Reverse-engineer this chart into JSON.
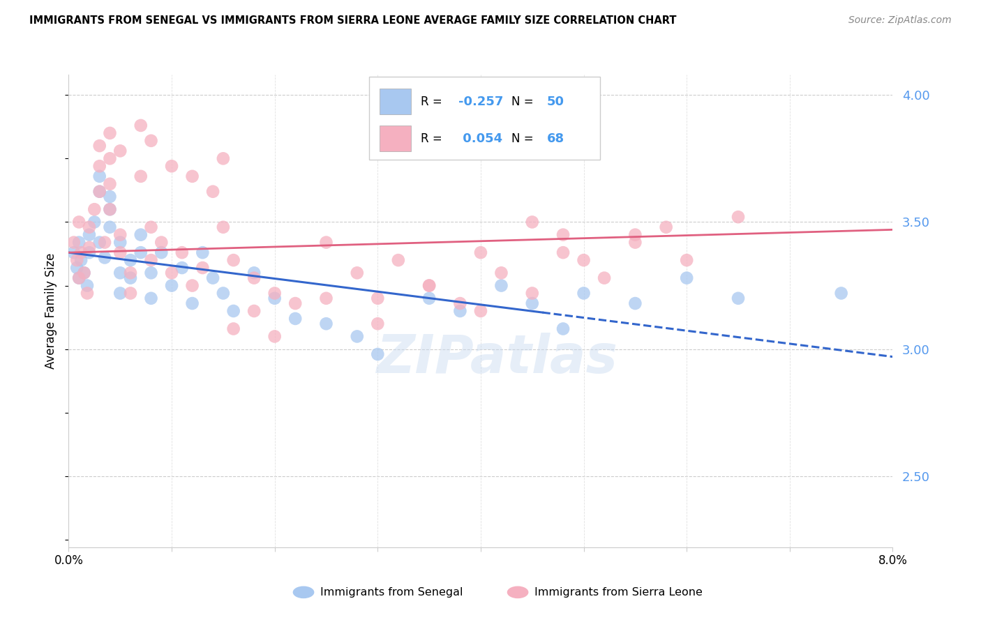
{
  "title": "IMMIGRANTS FROM SENEGAL VS IMMIGRANTS FROM SIERRA LEONE AVERAGE FAMILY SIZE CORRELATION CHART",
  "source": "Source: ZipAtlas.com",
  "ylabel": "Average Family Size",
  "right_yticks": [
    2.5,
    3.0,
    3.5,
    4.0
  ],
  "legend_blue_R": "-0.257",
  "legend_blue_N": "50",
  "legend_pink_R": "0.054",
  "legend_pink_N": "68",
  "blue_color": "#a8c8f0",
  "pink_color": "#f5b0c0",
  "blue_line_color": "#3366cc",
  "pink_line_color": "#e06080",
  "watermark": "ZIPatlas",
  "blue_points_x": [
    0.0005,
    0.0008,
    0.001,
    0.001,
    0.0012,
    0.0015,
    0.0018,
    0.002,
    0.002,
    0.0025,
    0.003,
    0.003,
    0.003,
    0.0035,
    0.004,
    0.004,
    0.004,
    0.005,
    0.005,
    0.005,
    0.006,
    0.006,
    0.007,
    0.007,
    0.008,
    0.008,
    0.009,
    0.01,
    0.011,
    0.012,
    0.013,
    0.014,
    0.015,
    0.016,
    0.018,
    0.02,
    0.022,
    0.025,
    0.028,
    0.03,
    0.035,
    0.038,
    0.042,
    0.045,
    0.048,
    0.05,
    0.055,
    0.06,
    0.065,
    0.075
  ],
  "blue_points_y": [
    3.38,
    3.32,
    3.28,
    3.42,
    3.35,
    3.3,
    3.25,
    3.45,
    3.38,
    3.5,
    3.62,
    3.68,
    3.42,
    3.36,
    3.55,
    3.6,
    3.48,
    3.22,
    3.3,
    3.42,
    3.35,
    3.28,
    3.38,
    3.45,
    3.3,
    3.2,
    3.38,
    3.25,
    3.32,
    3.18,
    3.38,
    3.28,
    3.22,
    3.15,
    3.3,
    3.2,
    3.12,
    3.1,
    3.05,
    2.98,
    3.2,
    3.15,
    3.25,
    3.18,
    3.08,
    3.22,
    3.18,
    3.28,
    3.2,
    3.22
  ],
  "pink_points_x": [
    0.0005,
    0.0008,
    0.001,
    0.001,
    0.0012,
    0.0015,
    0.0018,
    0.002,
    0.002,
    0.0025,
    0.003,
    0.003,
    0.0035,
    0.004,
    0.004,
    0.004,
    0.005,
    0.005,
    0.006,
    0.006,
    0.007,
    0.008,
    0.008,
    0.009,
    0.01,
    0.011,
    0.012,
    0.013,
    0.014,
    0.015,
    0.016,
    0.018,
    0.02,
    0.022,
    0.025,
    0.028,
    0.03,
    0.032,
    0.035,
    0.038,
    0.04,
    0.042,
    0.045,
    0.048,
    0.05,
    0.052,
    0.055,
    0.058,
    0.06,
    0.065,
    0.016,
    0.018,
    0.02,
    0.025,
    0.03,
    0.035,
    0.04,
    0.045,
    0.048,
    0.055,
    0.003,
    0.004,
    0.005,
    0.007,
    0.008,
    0.01,
    0.012,
    0.015
  ],
  "pink_points_y": [
    3.42,
    3.35,
    3.28,
    3.5,
    3.38,
    3.3,
    3.22,
    3.48,
    3.4,
    3.55,
    3.72,
    3.62,
    3.42,
    3.65,
    3.75,
    3.55,
    3.38,
    3.45,
    3.3,
    3.22,
    3.68,
    3.48,
    3.35,
    3.42,
    3.3,
    3.38,
    3.25,
    3.32,
    3.62,
    3.48,
    3.35,
    3.28,
    3.22,
    3.18,
    3.42,
    3.3,
    3.2,
    3.35,
    3.25,
    3.18,
    3.38,
    3.3,
    3.22,
    3.45,
    3.35,
    3.28,
    3.42,
    3.48,
    3.35,
    3.52,
    3.08,
    3.15,
    3.05,
    3.2,
    3.1,
    3.25,
    3.15,
    3.5,
    3.38,
    3.45,
    3.8,
    3.85,
    3.78,
    3.88,
    3.82,
    3.72,
    3.68,
    3.75
  ]
}
